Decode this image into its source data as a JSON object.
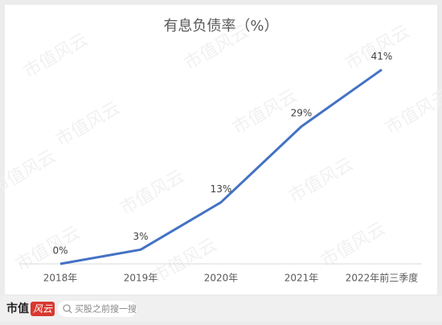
{
  "chart_data": {
    "type": "line",
    "title": "有息负债率（%）",
    "categories": [
      "2018年",
      "2019年",
      "2020年",
      "2021年",
      "2022年前三季度"
    ],
    "values": [
      0,
      3,
      13,
      29,
      41
    ],
    "value_labels": [
      "0%",
      "3%",
      "13%",
      "29%",
      "41%"
    ],
    "color": "#4472c4",
    "ylim": [
      0,
      45
    ]
  },
  "watermark": "市值风云",
  "footer": {
    "brand_main": "市值",
    "brand_mark": "风云",
    "search": "买股之前搜一搜"
  }
}
